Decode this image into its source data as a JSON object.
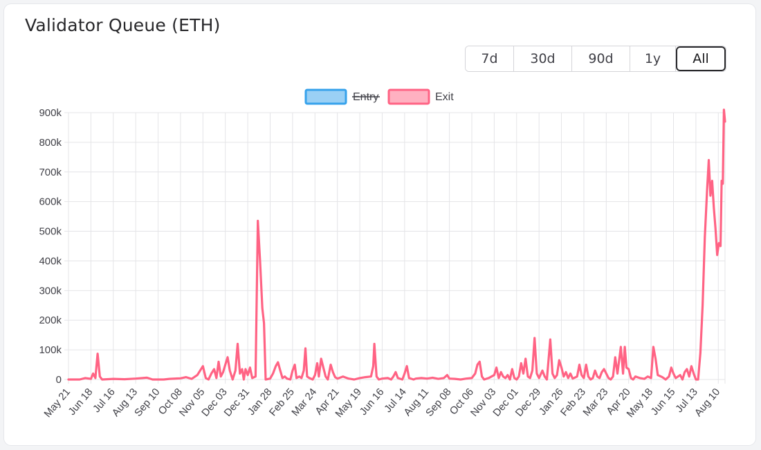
{
  "title": "Validator Queue (ETH)",
  "range_buttons": [
    {
      "label": "7d"
    },
    {
      "label": "30d"
    },
    {
      "label": "90d"
    },
    {
      "label": "1y"
    },
    {
      "label": "All",
      "active": true
    }
  ],
  "chart_data": {
    "type": "line",
    "title": "",
    "xlabel": "",
    "ylabel": "",
    "ylim": [
      0,
      900000
    ],
    "y_ticks": [
      0,
      100000,
      200000,
      300000,
      400000,
      500000,
      600000,
      700000,
      800000,
      900000
    ],
    "y_tick_labels": [
      "0",
      "100k",
      "200k",
      "300k",
      "400k",
      "500k",
      "600k",
      "700k",
      "800k",
      "900k"
    ],
    "x_tick_labels": [
      "May 21",
      "Jun 18",
      "Jul 16",
      "Aug 13",
      "Sep 10",
      "Oct 08",
      "Nov 05",
      "Dec 03",
      "Dec 31",
      "Jan 28",
      "Feb 25",
      "Mar 24",
      "Apr 21",
      "May 19",
      "Jun 16",
      "Jul 14",
      "Aug 11",
      "Sep 08",
      "Oct 06",
      "Nov 03",
      "Dec 01",
      "Dec 29",
      "Jan 26",
      "Feb 23",
      "Mar 23",
      "Apr 20",
      "May 18",
      "Jun 15",
      "Jul 13",
      "Aug 10"
    ],
    "x_tick_weeks": [
      0,
      4,
      8,
      12,
      16,
      20,
      24,
      28,
      32,
      36,
      40,
      44,
      48,
      52,
      56,
      60,
      64,
      68,
      72,
      76,
      80,
      84,
      88,
      92,
      96,
      100,
      104,
      108,
      112,
      116
    ],
    "x_max_week": 117.2,
    "grid": true,
    "legend_position": "top",
    "series": [
      {
        "name": "Entry",
        "hidden": true,
        "color": "#36a2eb",
        "fill": "#9ad0f5",
        "points": []
      },
      {
        "name": "Exit",
        "hidden": false,
        "color": "#ff6384",
        "fill": "#ffb1c1",
        "points": [
          [
            0,
            0
          ],
          [
            2,
            0
          ],
          [
            3,
            5000
          ],
          [
            4,
            2000
          ],
          [
            4.4,
            20000
          ],
          [
            4.8,
            5000
          ],
          [
            5.2,
            87000
          ],
          [
            5.6,
            10000
          ],
          [
            6,
            0
          ],
          [
            8,
            2000
          ],
          [
            10,
            1000
          ],
          [
            12,
            3000
          ],
          [
            14,
            6000
          ],
          [
            15,
            0
          ],
          [
            17,
            0
          ],
          [
            18,
            2000
          ],
          [
            20,
            4000
          ],
          [
            21,
            8000
          ],
          [
            22,
            2000
          ],
          [
            23,
            15000
          ],
          [
            24,
            45000
          ],
          [
            24.5,
            5000
          ],
          [
            25,
            0
          ],
          [
            25.5,
            20000
          ],
          [
            26,
            35000
          ],
          [
            26.4,
            5000
          ],
          [
            26.8,
            60000
          ],
          [
            27.2,
            10000
          ],
          [
            27.6,
            25000
          ],
          [
            28,
            50000
          ],
          [
            28.4,
            75000
          ],
          [
            28.8,
            30000
          ],
          [
            29.3,
            0
          ],
          [
            29.8,
            30000
          ],
          [
            30.2,
            120000
          ],
          [
            30.6,
            20000
          ],
          [
            31,
            35000
          ],
          [
            31.3,
            0
          ],
          [
            31.6,
            35000
          ],
          [
            32,
            15000
          ],
          [
            32.4,
            40000
          ],
          [
            32.8,
            5000
          ],
          [
            33.4,
            10000
          ],
          [
            33.8,
            535000
          ],
          [
            34.2,
            400000
          ],
          [
            34.6,
            240000
          ],
          [
            34.9,
            190000
          ],
          [
            35.2,
            0
          ],
          [
            36,
            3000
          ],
          [
            36.5,
            20000
          ],
          [
            37,
            45000
          ],
          [
            37.4,
            58000
          ],
          [
            37.8,
            30000
          ],
          [
            38.2,
            5000
          ],
          [
            38.6,
            10000
          ],
          [
            39,
            3000
          ],
          [
            39.6,
            0
          ],
          [
            40,
            30000
          ],
          [
            40.4,
            50000
          ],
          [
            40.7,
            5000
          ],
          [
            41.2,
            10000
          ],
          [
            41.6,
            5000
          ],
          [
            42,
            30000
          ],
          [
            42.3,
            105000
          ],
          [
            42.6,
            10000
          ],
          [
            43,
            5000
          ],
          [
            43.6,
            0
          ],
          [
            44,
            15000
          ],
          [
            44.4,
            55000
          ],
          [
            44.7,
            10000
          ],
          [
            45.1,
            70000
          ],
          [
            45.5,
            40000
          ],
          [
            45.9,
            10000
          ],
          [
            46.3,
            0
          ],
          [
            46.8,
            50000
          ],
          [
            47.2,
            25000
          ],
          [
            47.6,
            8000
          ],
          [
            48,
            3000
          ],
          [
            49,
            10000
          ],
          [
            50,
            3000
          ],
          [
            51,
            0
          ],
          [
            52,
            5000
          ],
          [
            53,
            8000
          ],
          [
            54,
            10000
          ],
          [
            54.4,
            45000
          ],
          [
            54.6,
            120000
          ],
          [
            55,
            10000
          ],
          [
            55.4,
            0
          ],
          [
            56,
            3000
          ],
          [
            57,
            5000
          ],
          [
            57.6,
            0
          ],
          [
            58,
            10000
          ],
          [
            58.4,
            25000
          ],
          [
            58.8,
            5000
          ],
          [
            59.6,
            0
          ],
          [
            60,
            20000
          ],
          [
            60.4,
            45000
          ],
          [
            60.8,
            5000
          ],
          [
            61.6,
            0
          ],
          [
            62,
            3000
          ],
          [
            63,
            5000
          ],
          [
            64,
            3000
          ],
          [
            65,
            6000
          ],
          [
            66,
            2000
          ],
          [
            67,
            5000
          ],
          [
            67.6,
            15000
          ],
          [
            68,
            3000
          ],
          [
            69,
            2000
          ],
          [
            70,
            0
          ],
          [
            71,
            3000
          ],
          [
            72,
            5000
          ],
          [
            72.6,
            20000
          ],
          [
            73,
            50000
          ],
          [
            73.4,
            60000
          ],
          [
            73.8,
            10000
          ],
          [
            74.2,
            0
          ],
          [
            75,
            5000
          ],
          [
            76,
            15000
          ],
          [
            76.4,
            40000
          ],
          [
            76.8,
            5000
          ],
          [
            77.2,
            25000
          ],
          [
            77.6,
            10000
          ],
          [
            78,
            5000
          ],
          [
            78.4,
            15000
          ],
          [
            78.8,
            0
          ],
          [
            79.2,
            35000
          ],
          [
            79.6,
            5000
          ],
          [
            80,
            0
          ],
          [
            80.4,
            10000
          ],
          [
            80.8,
            55000
          ],
          [
            81.2,
            20000
          ],
          [
            81.6,
            70000
          ],
          [
            82,
            10000
          ],
          [
            82.4,
            5000
          ],
          [
            82.8,
            30000
          ],
          [
            83.2,
            140000
          ],
          [
            83.6,
            20000
          ],
          [
            84,
            5000
          ],
          [
            84.6,
            30000
          ],
          [
            85,
            10000
          ],
          [
            85.4,
            0
          ],
          [
            86,
            135000
          ],
          [
            86.4,
            20000
          ],
          [
            86.8,
            5000
          ],
          [
            87.2,
            15000
          ],
          [
            87.6,
            65000
          ],
          [
            88,
            40000
          ],
          [
            88.4,
            10000
          ],
          [
            88.8,
            25000
          ],
          [
            89.2,
            5000
          ],
          [
            89.6,
            20000
          ],
          [
            90,
            3000
          ],
          [
            90.8,
            10000
          ],
          [
            91.2,
            50000
          ],
          [
            91.6,
            15000
          ],
          [
            92,
            5000
          ],
          [
            92.4,
            50000
          ],
          [
            92.8,
            10000
          ],
          [
            93.2,
            0
          ],
          [
            93.6,
            5000
          ],
          [
            94,
            30000
          ],
          [
            94.4,
            10000
          ],
          [
            94.8,
            5000
          ],
          [
            95.2,
            25000
          ],
          [
            95.6,
            35000
          ],
          [
            96,
            20000
          ],
          [
            96.4,
            5000
          ],
          [
            96.8,
            0
          ],
          [
            97.2,
            10000
          ],
          [
            97.6,
            75000
          ],
          [
            98,
            20000
          ],
          [
            98.4,
            80000
          ],
          [
            98.6,
            110000
          ],
          [
            99,
            20000
          ],
          [
            99.3,
            110000
          ],
          [
            99.6,
            40000
          ],
          [
            100,
            35000
          ],
          [
            100.4,
            5000
          ],
          [
            100.8,
            0
          ],
          [
            101.2,
            10000
          ],
          [
            102,
            5000
          ],
          [
            102.8,
            2000
          ],
          [
            103.4,
            10000
          ],
          [
            104,
            5000
          ],
          [
            104.4,
            110000
          ],
          [
            104.8,
            70000
          ],
          [
            105.2,
            15000
          ],
          [
            106,
            8000
          ],
          [
            106.6,
            0
          ],
          [
            107.2,
            10000
          ],
          [
            107.6,
            40000
          ],
          [
            108,
            20000
          ],
          [
            108.4,
            5000
          ],
          [
            109.2,
            15000
          ],
          [
            109.6,
            0
          ],
          [
            110,
            25000
          ],
          [
            110.4,
            35000
          ],
          [
            110.8,
            10000
          ],
          [
            111.2,
            45000
          ],
          [
            111.6,
            20000
          ],
          [
            112,
            0
          ],
          [
            112.4,
            0
          ],
          [
            112.8,
            90000
          ],
          [
            113.2,
            250000
          ],
          [
            113.6,
            480000
          ],
          [
            114,
            640000
          ],
          [
            114.3,
            740000
          ],
          [
            114.6,
            620000
          ],
          [
            114.9,
            670000
          ],
          [
            115.2,
            580000
          ],
          [
            115.5,
            510000
          ],
          [
            115.8,
            420000
          ],
          [
            116.1,
            460000
          ],
          [
            116.4,
            450000
          ],
          [
            116.6,
            670000
          ],
          [
            116.8,
            660000
          ],
          [
            117,
            910000
          ],
          [
            117.2,
            870000
          ]
        ]
      }
    ]
  }
}
